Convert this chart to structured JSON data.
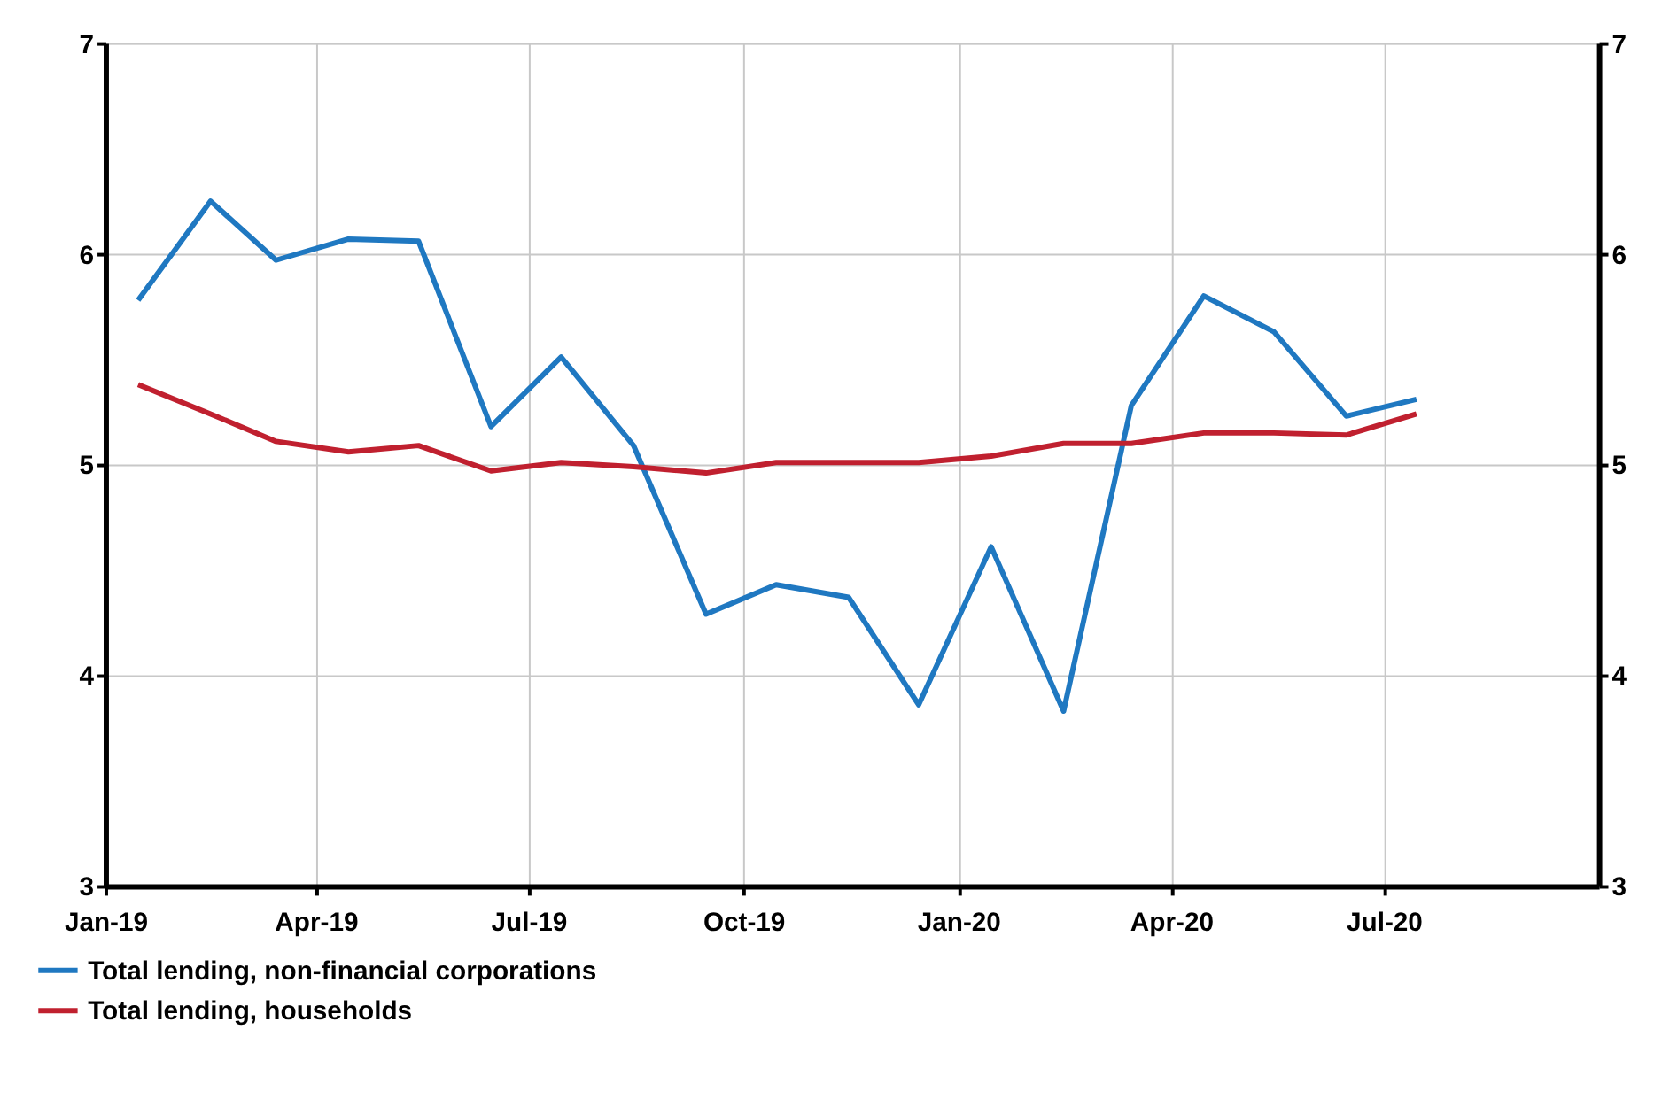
{
  "chart_data": {
    "type": "line",
    "x": [
      "2019-01-15",
      "2019-02-15",
      "2019-03-15",
      "2019-04-15",
      "2019-05-15",
      "2019-06-15",
      "2019-07-15",
      "2019-08-15",
      "2019-09-15",
      "2019-10-15",
      "2019-11-15",
      "2019-12-15",
      "2020-01-15",
      "2020-02-15",
      "2020-03-15",
      "2020-04-15",
      "2020-05-15",
      "2020-06-15",
      "2020-07-15"
    ],
    "series": [
      {
        "name": "Total lending, non-financial corporations",
        "color": "#1f78c1",
        "values": [
          5.78,
          6.25,
          5.97,
          6.07,
          6.06,
          5.18,
          5.51,
          5.09,
          4.29,
          4.43,
          4.37,
          3.86,
          4.61,
          3.83,
          5.28,
          5.8,
          5.63,
          5.23,
          5.31
        ]
      },
      {
        "name": "Total lending, households",
        "color": "#c0202f",
        "values": [
          5.38,
          5.24,
          5.11,
          5.06,
          5.09,
          4.97,
          5.01,
          4.99,
          4.96,
          5.01,
          5.01,
          5.01,
          5.04,
          5.1,
          5.1,
          5.15,
          5.15,
          5.14,
          5.24
        ]
      }
    ],
    "xlim": [
      "2019-01-01",
      "2020-10-01"
    ],
    "xticks": [
      {
        "value": "2019-01-01",
        "label": "Jan-19"
      },
      {
        "value": "2019-04-01",
        "label": "Apr-19"
      },
      {
        "value": "2019-07-01",
        "label": "Jul-19"
      },
      {
        "value": "2019-10-01",
        "label": "Oct-19"
      },
      {
        "value": "2020-01-01",
        "label": "Jan-20"
      },
      {
        "value": "2020-04-01",
        "label": "Apr-20"
      },
      {
        "value": "2020-07-01",
        "label": "Jul-20"
      }
    ],
    "ylim": [
      3,
      7
    ],
    "yticks": [
      3,
      4,
      5,
      6,
      7
    ],
    "y2lim": [
      3,
      7
    ],
    "y2ticks": [
      3,
      4,
      5,
      6,
      7
    ],
    "grid": true,
    "legend": "bottom left",
    "marker": "none",
    "line_style": "solid"
  }
}
